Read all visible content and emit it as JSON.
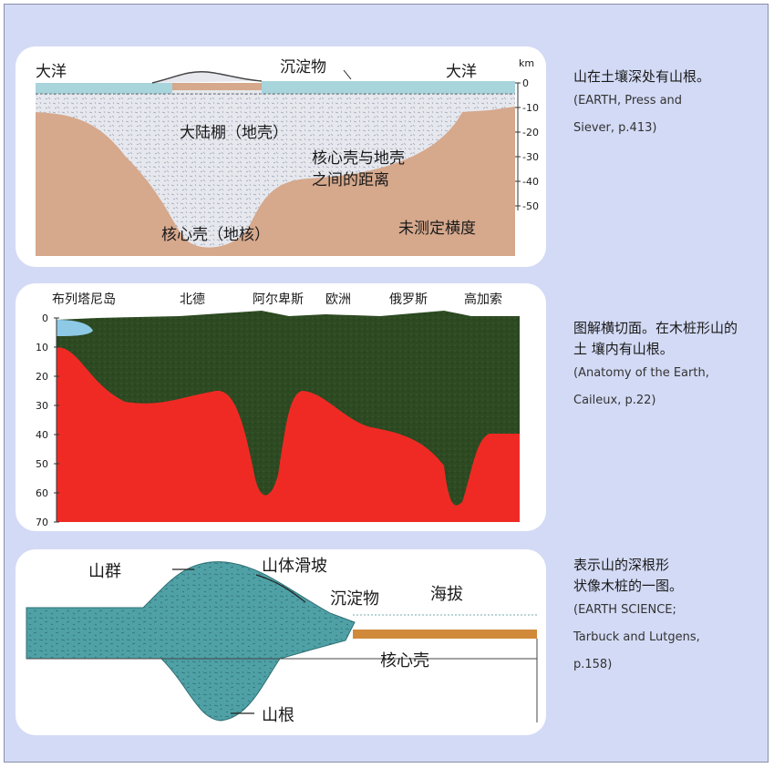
{
  "panel1": {
    "labels": {
      "ocean_left": "大洋",
      "ocean_right": "大洋",
      "sediment": "沉淀物",
      "crust": "大陆棚（地壳）",
      "distance_line1": "核心壳与地壳",
      "distance_line2": "之间的距离",
      "core": "核心壳（地核）",
      "unmeasured": "未测定横度"
    },
    "scale": {
      "unit": "km",
      "ticks": [
        "0",
        "-10",
        "-20",
        "-30",
        "-40",
        "-50"
      ]
    }
  },
  "panel2": {
    "regions": [
      "布列塔尼岛",
      "北德",
      "阿尔卑斯",
      "欧洲",
      "俄罗斯",
      "高加索"
    ],
    "depth_ticks": [
      "0",
      "10",
      "20",
      "30",
      "40",
      "50",
      "60",
      "70"
    ]
  },
  "panel3": {
    "labels": {
      "mountains": "山群",
      "landslide": "山体滑坡",
      "sediment": "沉淀物",
      "altitude": "海拔",
      "core": "核心壳",
      "root": "山根"
    }
  },
  "captions": {
    "c1": {
      "zh": [
        "山在土壤深处有山根。"
      ],
      "en": [
        "(EARTH, Press and",
        "Siever, p.413)"
      ]
    },
    "c2": {
      "zh": [
        "图解横切面。在木桩形山的",
        "土 壤内有山根。"
      ],
      "en": [
        "(Anatomy of the Earth,",
        "Caileux, p.22)"
      ]
    },
    "c3": {
      "zh": [
        "表示山的深根形",
        "状像木桩的一图。"
      ],
      "en": [
        "(EARTH SCIENCE;",
        "Tarbuck and Lutgens,",
        "p.158)"
      ]
    }
  },
  "colors": {
    "background": "#d3daf5",
    "mantle": "#d6a88c",
    "crust": "#e6e8ee",
    "ocean": "#a8d4dc",
    "lower_crust": "#ef2a24",
    "upper_crust": "#2d4a22",
    "mountain": "#4fa1a6",
    "core_band": "#d08a3a"
  }
}
